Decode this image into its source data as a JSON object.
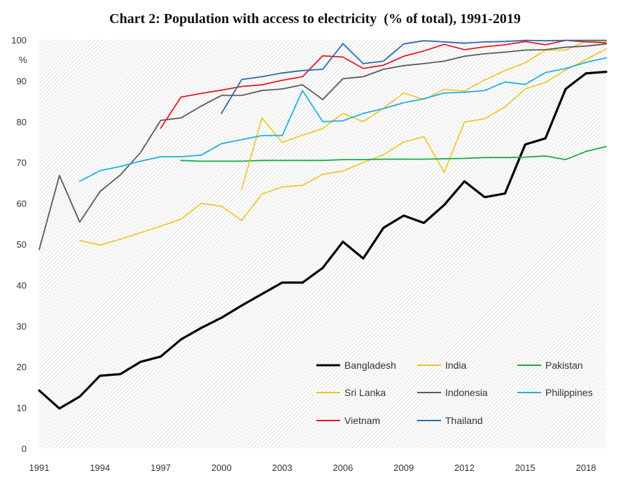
{
  "chart_data": {
    "type": "line",
    "title": "Chart 2: Population with access to electricity  (% of total), 1991-2019",
    "ylabel": "%",
    "xlim": [
      1991,
      2019
    ],
    "ylim": [
      0,
      100
    ],
    "x_ticks": [
      "1991",
      "1994",
      "1997",
      "2000",
      "2003",
      "2006",
      "2009",
      "2012",
      "2015",
      "2018"
    ],
    "y_ticks": [
      "0",
      "10",
      "20",
      "30",
      "40",
      "50",
      "60",
      "70",
      "80",
      "90",
      "100"
    ],
    "grid": "hatched background, no gridlines",
    "legend_position": "bottom-right, inside plot",
    "series": [
      {
        "name": "Bangladesh",
        "color": "#000000",
        "width": 3.2,
        "x": [
          1991,
          1992,
          1993,
          1994,
          1995,
          1996,
          1997,
          1998,
          1999,
          2000,
          2001,
          2002,
          2003,
          2004,
          2005,
          2006,
          2007,
          2008,
          2009,
          2010,
          2011,
          2012,
          2013,
          2014,
          2015,
          2016,
          2017,
          2018,
          2019
        ],
        "y": [
          14.2,
          9.8,
          12.7,
          17.8,
          18.2,
          21.2,
          22.5,
          26.7,
          29.5,
          32.0,
          35.0,
          37.8,
          40.6,
          40.6,
          44.2,
          50.6,
          46.5,
          54.0,
          57.0,
          55.2,
          59.6,
          65.4,
          61.5,
          62.4,
          74.4,
          75.9,
          88.0,
          91.8,
          92.2
        ]
      },
      {
        "name": "India",
        "color": "#f2c21b",
        "width": 1.6,
        "x": [
          1993,
          1994,
          1995,
          1996,
          1997,
          1998,
          1999,
          2000,
          2001,
          2002,
          2003,
          2004,
          2005,
          2006,
          2007,
          2008,
          2009,
          2010,
          2011,
          2012,
          2013,
          2014,
          2015,
          2016,
          2017,
          2018,
          2019
        ],
        "y": [
          50.9,
          49.8,
          51.2,
          52.8,
          54.4,
          56.1,
          60.0,
          59.3,
          55.8,
          62.3,
          64.0,
          64.4,
          67.1,
          67.9,
          70.0,
          71.9,
          75.0,
          76.3,
          67.6,
          79.9,
          80.7,
          83.6,
          88.0,
          89.6,
          92.6,
          95.2,
          97.8
        ]
      },
      {
        "name": "Pakistan",
        "color": "#1aa84e",
        "width": 1.8,
        "x": [
          1998,
          1999,
          2000,
          2001,
          2002,
          2003,
          2004,
          2005,
          2006,
          2007,
          2008,
          2009,
          2010,
          2011,
          2012,
          2013,
          2014,
          2015,
          2016,
          2017,
          2018,
          2019
        ],
        "y": [
          70.5,
          70.3,
          70.3,
          70.3,
          70.5,
          70.5,
          70.5,
          70.5,
          70.7,
          70.7,
          70.8,
          70.8,
          70.8,
          70.9,
          71.0,
          71.2,
          71.2,
          71.3,
          71.6,
          70.7,
          72.7,
          73.9
        ]
      },
      {
        "name": "Sri Lanka",
        "color": "#f2c21b",
        "width": 1.6,
        "x": [
          2001,
          2002,
          2003,
          2004,
          2005,
          2006,
          2007,
          2008,
          2009,
          2010,
          2011,
          2012,
          2013,
          2014,
          2015,
          2016,
          2017,
          2018,
          2019
        ],
        "y": [
          63.5,
          80.9,
          74.9,
          76.7,
          78.3,
          82.0,
          80.0,
          83.3,
          87.0,
          85.4,
          87.9,
          87.5,
          90.2,
          92.5,
          94.4,
          97.5,
          97.5,
          99.7,
          99.7
        ]
      },
      {
        "name": "Indonesia",
        "color": "#595959",
        "width": 1.8,
        "x": [
          1991,
          1992,
          1993,
          1994,
          1995,
          1996,
          1997,
          1998,
          1999,
          2000,
          2001,
          2002,
          2003,
          2004,
          2005,
          2006,
          2007,
          2008,
          2009,
          2010,
          2011,
          2012,
          2013,
          2014,
          2015,
          2016,
          2017,
          2018,
          2019
        ],
        "y": [
          48.7,
          66.8,
          55.4,
          62.9,
          66.9,
          72.4,
          80.3,
          80.9,
          83.8,
          86.4,
          86.4,
          87.6,
          88.0,
          89.0,
          85.4,
          90.5,
          91.0,
          92.8,
          93.7,
          94.2,
          94.8,
          96.0,
          96.6,
          97.0,
          97.5,
          97.6,
          98.2,
          98.5,
          99.0
        ]
      },
      {
        "name": "Philippines",
        "color": "#1fb1e0",
        "width": 1.8,
        "x": [
          1993,
          1994,
          1995,
          1996,
          1997,
          1998,
          1999,
          2000,
          2001,
          2002,
          2003,
          2004,
          2005,
          2006,
          2007,
          2008,
          2009,
          2010,
          2011,
          2012,
          2013,
          2014,
          2015,
          2016,
          2017,
          2018,
          2019
        ],
        "y": [
          65.4,
          68.0,
          69.0,
          70.3,
          71.4,
          71.4,
          71.8,
          74.6,
          75.6,
          76.6,
          76.6,
          87.6,
          80.0,
          80.2,
          82.0,
          83.2,
          84.6,
          85.6,
          87.0,
          87.2,
          87.6,
          89.7,
          89.1,
          92.0,
          93.0,
          94.5,
          95.6
        ]
      },
      {
        "name": "Vietnam",
        "color": "#e31b23",
        "width": 1.8,
        "x": [
          1997,
          1998,
          1999,
          2000,
          2001,
          2002,
          2003,
          2004,
          2005,
          2006,
          2007,
          2008,
          2009,
          2010,
          2011,
          2012,
          2013,
          2014,
          2015,
          2016,
          2017,
          2018,
          2019
        ],
        "y": [
          78.4,
          86.0,
          86.9,
          87.7,
          88.6,
          89.0,
          90.1,
          91.0,
          96.1,
          95.8,
          93.0,
          93.8,
          96.0,
          97.3,
          98.9,
          97.6,
          98.3,
          98.8,
          99.6,
          98.8,
          99.9,
          99.5,
          99.3
        ]
      },
      {
        "name": "Thailand",
        "color": "#2a6ab0",
        "width": 1.8,
        "x": [
          2000,
          2001,
          2002,
          2003,
          2004,
          2005,
          2006,
          2007,
          2008,
          2009,
          2010,
          2011,
          2012,
          2013,
          2014,
          2015,
          2016,
          2017,
          2018,
          2019
        ],
        "y": [
          82.0,
          90.3,
          91.0,
          91.9,
          92.5,
          92.8,
          99.1,
          94.2,
          94.8,
          99.0,
          99.8,
          99.5,
          99.2,
          99.5,
          99.6,
          99.9,
          99.8,
          99.9,
          99.9,
          99.9
        ]
      }
    ],
    "legend_order": [
      [
        "Bangladesh",
        "India",
        "Pakistan"
      ],
      [
        "Sri Lanka",
        "Indonesia",
        "Philippines"
      ],
      [
        "Vietnam",
        "Thailand"
      ]
    ]
  }
}
